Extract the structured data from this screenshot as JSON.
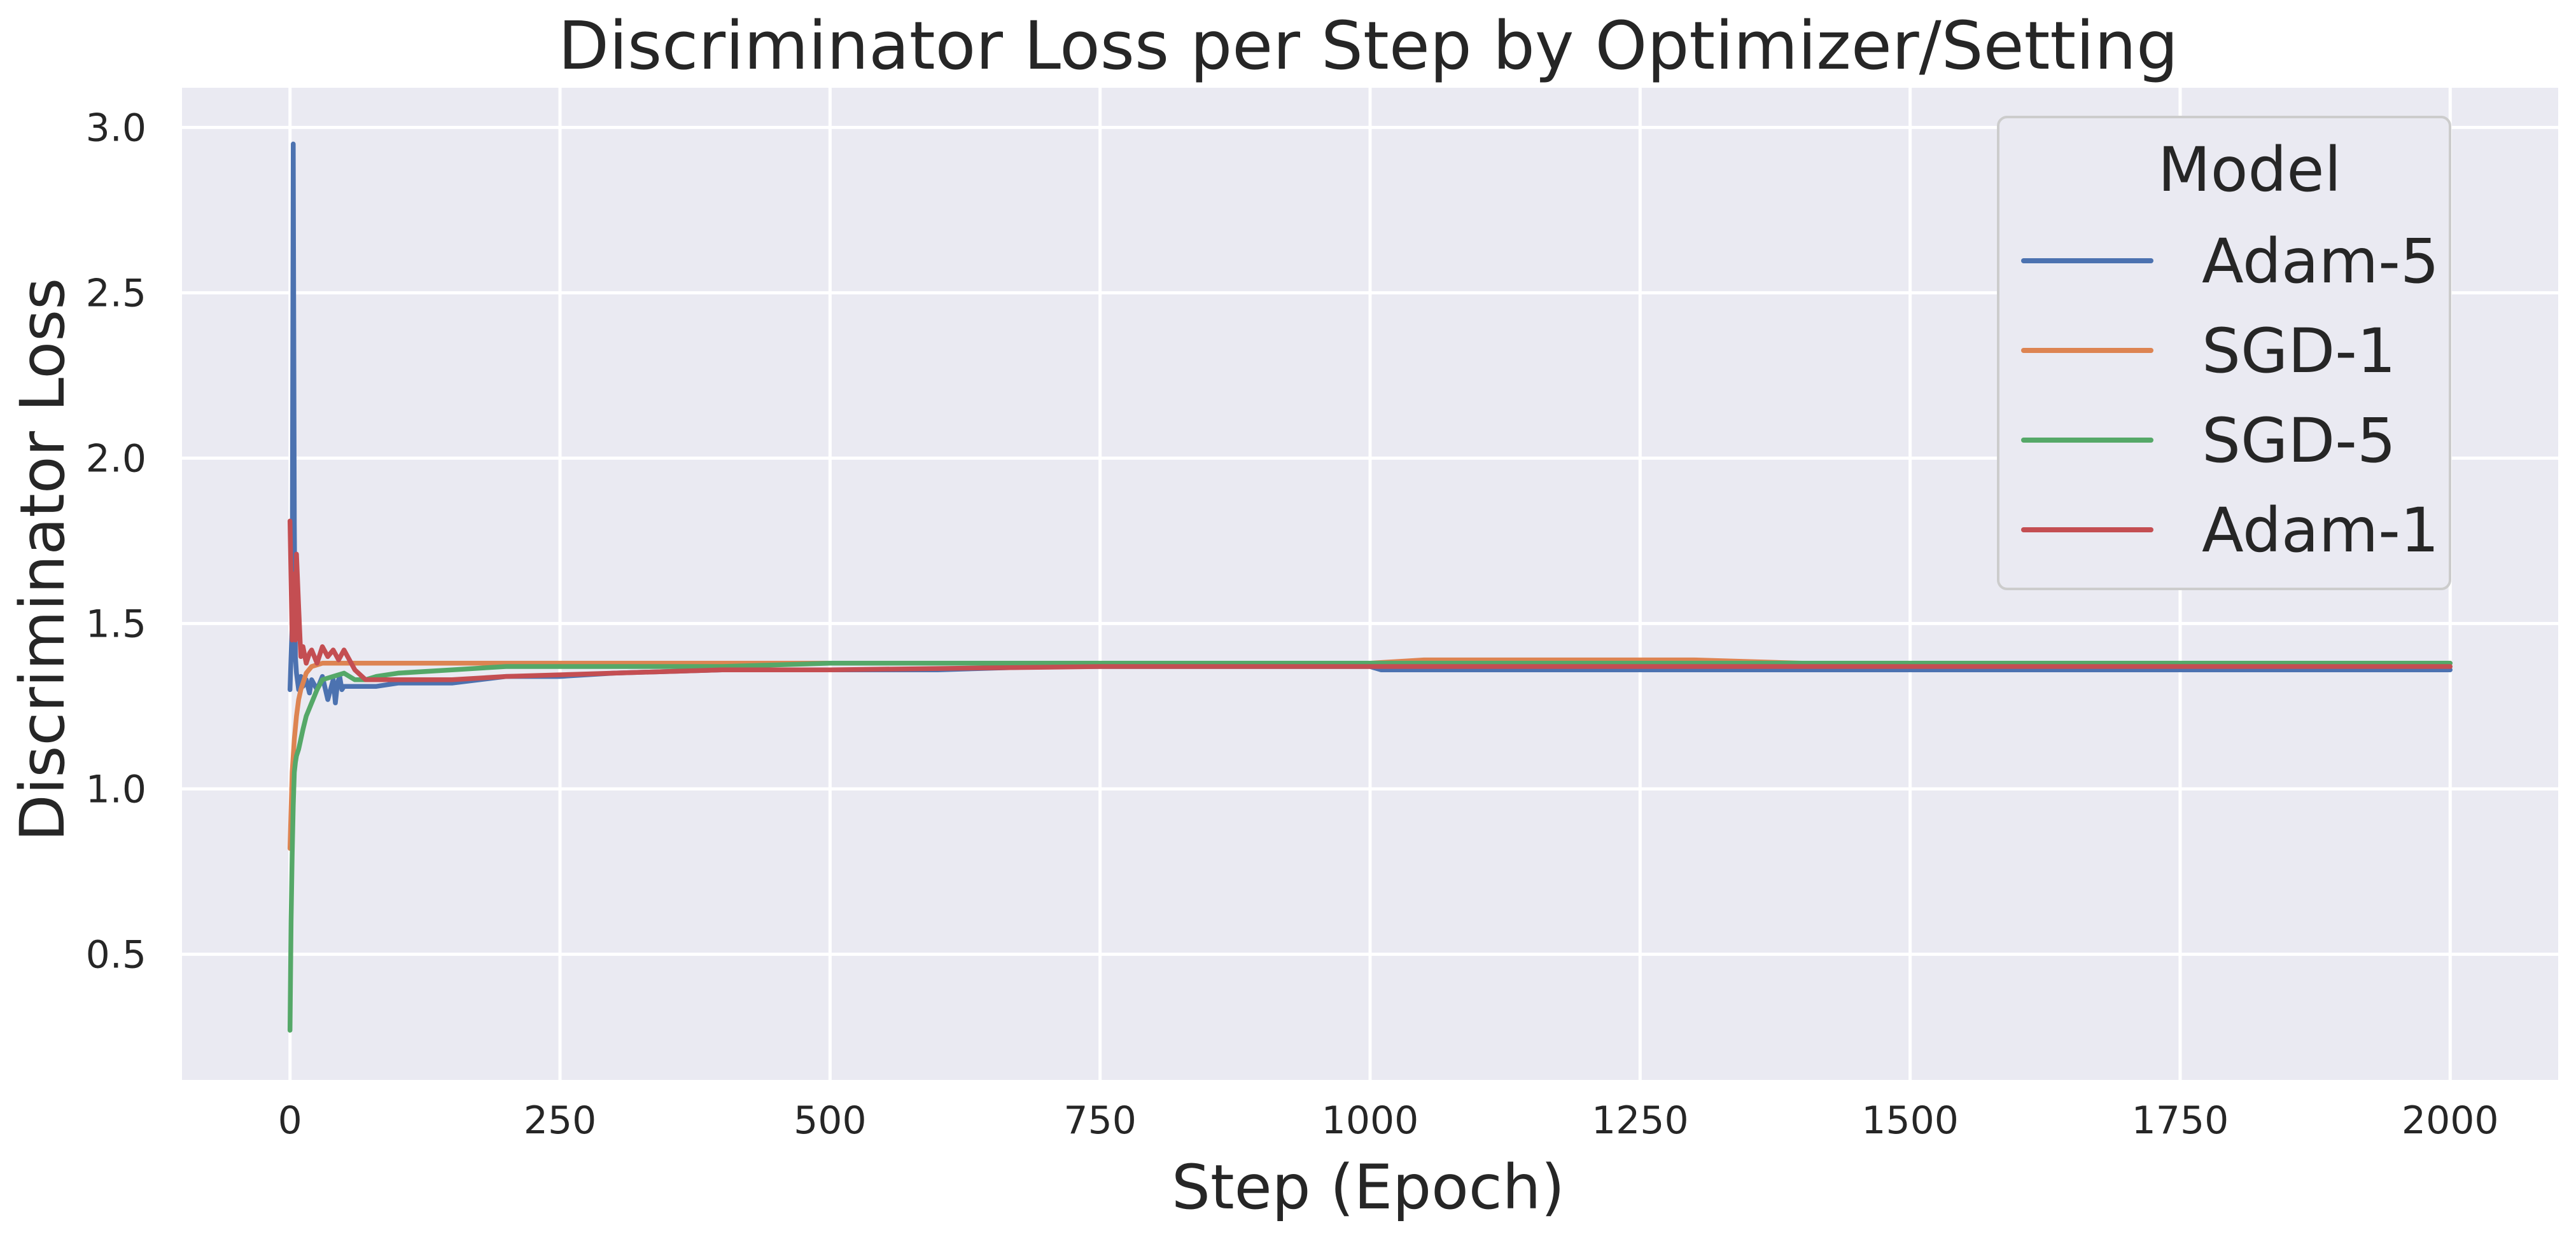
{
  "chart_data": {
    "type": "line",
    "title": "Discriminator Loss per Step by Optimizer/Setting",
    "xlabel": "Step (Epoch)",
    "ylabel": "Discriminator Loss",
    "xlim": [
      -100,
      2100
    ],
    "ylim": [
      0.12,
      3.12
    ],
    "xticks": [
      0,
      250,
      500,
      750,
      1000,
      1250,
      1500,
      1750,
      2000
    ],
    "yticks": [
      0.5,
      1.0,
      1.5,
      2.0,
      2.5,
      3.0
    ],
    "grid": true,
    "legend": {
      "title": "Model",
      "placement": "top-right"
    },
    "colors": {
      "plot_background": "#eaeaf2",
      "grid": "#ffffff",
      "text": "#262626"
    },
    "series": [
      {
        "name": "Adam-5",
        "color": "#4c72b0",
        "x": [
          0,
          2,
          3,
          4,
          5,
          6,
          8,
          10,
          12,
          15,
          18,
          20,
          25,
          30,
          35,
          40,
          42,
          44,
          46,
          48,
          50,
          60,
          70,
          80,
          100,
          150,
          200,
          250,
          300,
          400,
          500,
          600,
          700,
          800,
          900,
          1000,
          1010,
          1050,
          1100,
          1250,
          1500,
          1750,
          2000
        ],
        "y": [
          1.3,
          1.5,
          2.95,
          1.8,
          1.4,
          1.35,
          1.3,
          1.34,
          1.31,
          1.33,
          1.29,
          1.33,
          1.3,
          1.34,
          1.27,
          1.33,
          1.26,
          1.32,
          1.34,
          1.3,
          1.31,
          1.31,
          1.31,
          1.31,
          1.32,
          1.32,
          1.34,
          1.34,
          1.35,
          1.36,
          1.36,
          1.36,
          1.37,
          1.37,
          1.37,
          1.37,
          1.36,
          1.36,
          1.36,
          1.36,
          1.36,
          1.36,
          1.36
        ]
      },
      {
        "name": "SGD-1",
        "color": "#dd8452",
        "x": [
          0,
          2,
          4,
          6,
          8,
          10,
          12,
          15,
          20,
          30,
          40,
          50,
          60,
          80,
          100,
          150,
          200,
          300,
          400,
          500,
          750,
          1000,
          1050,
          1100,
          1150,
          1200,
          1250,
          1300,
          1400,
          1500,
          1600,
          1750,
          1900,
          2000
        ],
        "y": [
          0.82,
          1.05,
          1.15,
          1.22,
          1.27,
          1.3,
          1.32,
          1.35,
          1.37,
          1.38,
          1.38,
          1.38,
          1.38,
          1.38,
          1.38,
          1.38,
          1.38,
          1.38,
          1.38,
          1.38,
          1.38,
          1.38,
          1.39,
          1.39,
          1.39,
          1.39,
          1.39,
          1.39,
          1.38,
          1.38,
          1.38,
          1.38,
          1.38,
          1.38
        ]
      },
      {
        "name": "SGD-5",
        "color": "#55a868",
        "x": [
          0,
          1,
          2,
          3,
          4,
          5,
          6,
          8,
          10,
          12,
          15,
          20,
          25,
          30,
          40,
          50,
          60,
          70,
          80,
          100,
          150,
          200,
          250,
          300,
          400,
          500,
          750,
          1000,
          1250,
          1500,
          1750,
          2000
        ],
        "y": [
          0.27,
          0.6,
          0.8,
          0.95,
          1.05,
          1.08,
          1.1,
          1.12,
          1.15,
          1.18,
          1.22,
          1.26,
          1.3,
          1.33,
          1.34,
          1.35,
          1.33,
          1.33,
          1.34,
          1.35,
          1.36,
          1.37,
          1.37,
          1.37,
          1.37,
          1.38,
          1.38,
          1.38,
          1.38,
          1.38,
          1.38,
          1.38
        ]
      },
      {
        "name": "Adam-1",
        "color": "#c44e52",
        "x": [
          0,
          2,
          3,
          5,
          6,
          8,
          10,
          12,
          15,
          18,
          20,
          25,
          30,
          35,
          40,
          45,
          50,
          60,
          70,
          80,
          100,
          150,
          200,
          300,
          400,
          500,
          750,
          1000,
          1250,
          1500,
          1750,
          2000
        ],
        "y": [
          1.81,
          1.45,
          1.65,
          1.45,
          1.71,
          1.55,
          1.4,
          1.43,
          1.38,
          1.41,
          1.42,
          1.38,
          1.43,
          1.4,
          1.42,
          1.39,
          1.42,
          1.36,
          1.33,
          1.33,
          1.33,
          1.33,
          1.34,
          1.35,
          1.36,
          1.36,
          1.37,
          1.37,
          1.37,
          1.37,
          1.37,
          1.37
        ]
      }
    ]
  }
}
